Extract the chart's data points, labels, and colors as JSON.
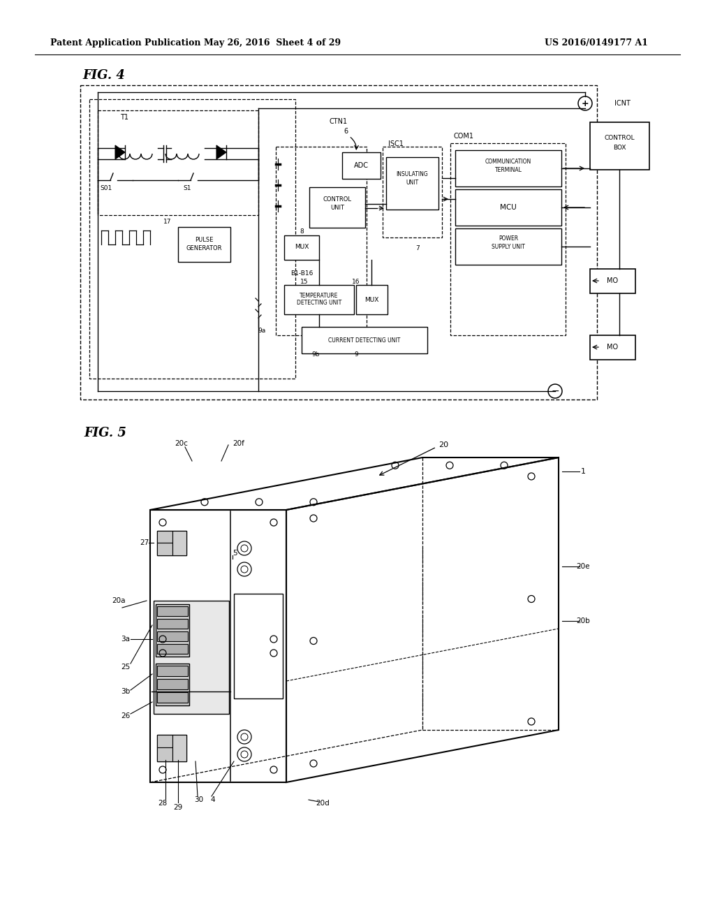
{
  "bg_color": "#ffffff",
  "header_left": "Patent Application Publication",
  "header_mid": "May 26, 2016  Sheet 4 of 29",
  "header_right": "US 2016/0149177 A1"
}
